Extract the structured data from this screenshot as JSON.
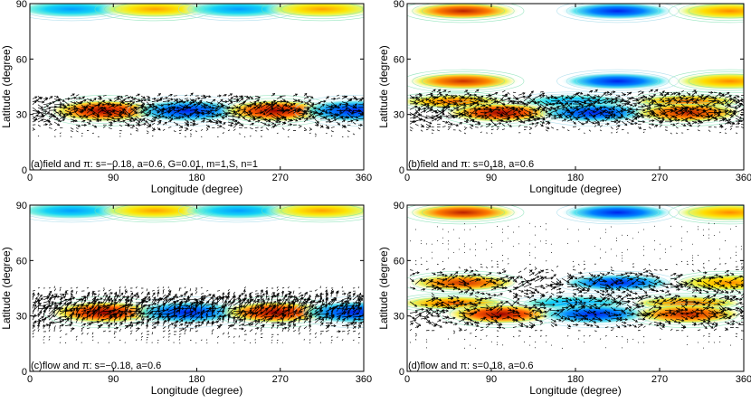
{
  "chart_data": [
    {
      "type": "heatmap",
      "panel": "a",
      "overlay": "quiver",
      "annotation": "(a)field and π: s=−0.18, a=0.6, G=0.01, m=1,S, n=1",
      "xlabel": "Longitude (degree)",
      "ylabel": "Latitude (degree)",
      "xlim": [
        0,
        360
      ],
      "ylim": [
        0,
        90
      ],
      "xticks": [
        "0",
        "90",
        "180",
        "270",
        "360"
      ],
      "yticks": [
        "0",
        "30",
        "60",
        "90"
      ],
      "bands": [
        {
          "lat": 87,
          "width": 3,
          "features": [
            {
              "lon": 45,
              "sign": -1,
              "amp": 0.5
            },
            {
              "lon": 135,
              "sign": 1,
              "amp": 0.55
            },
            {
              "lon": 225,
              "sign": -1,
              "amp": 0.5
            },
            {
              "lon": 315,
              "sign": 1,
              "amp": 0.55
            }
          ]
        },
        {
          "lat": 32,
          "width": 4,
          "features": [
            {
              "lon": 80,
              "sign": 1,
              "amp": 1.0
            },
            {
              "lon": 170,
              "sign": -1,
              "amp": 0.8
            },
            {
              "lon": 265,
              "sign": 1,
              "amp": 1.0
            },
            {
              "lon": 350,
              "sign": -1,
              "amp": 0.8
            }
          ]
        }
      ],
      "arrow_lat_range": [
        18,
        40
      ],
      "arrow_density": "medium"
    },
    {
      "type": "heatmap",
      "panel": "b",
      "overlay": "quiver",
      "annotation": "(b)field and π: s=0.18, a=0.6",
      "xlabel": "Longitude (degree)",
      "ylabel": "Latitude (degree)",
      "xlim": [
        0,
        360
      ],
      "ylim": [
        0,
        90
      ],
      "xticks": [
        "0",
        "90",
        "180",
        "270",
        "360"
      ],
      "yticks": [
        "0",
        "30",
        "60",
        "90"
      ],
      "bands": [
        {
          "lat": 86,
          "width": 3,
          "features": [
            {
              "lon": 60,
              "sign": 1,
              "amp": 0.9
            },
            {
              "lon": 225,
              "sign": -1,
              "amp": 0.8
            },
            {
              "lon": 345,
              "sign": 1,
              "amp": 0.6
            }
          ]
        },
        {
          "lat": 48,
          "width": 3,
          "features": [
            {
              "lon": 60,
              "sign": 1,
              "amp": 0.85
            },
            {
              "lon": 225,
              "sign": -1,
              "amp": 0.8
            },
            {
              "lon": 345,
              "sign": 1,
              "amp": 0.6
            }
          ]
        },
        {
          "lat": 37,
          "width": 2.5,
          "features": [
            {
              "lon": 50,
              "sign": 1,
              "amp": 0.7
            },
            {
              "lon": 180,
              "sign": -1,
              "amp": 0.5
            },
            {
              "lon": 300,
              "sign": 1,
              "amp": 0.7
            }
          ]
        },
        {
          "lat": 31,
          "width": 3.5,
          "features": [
            {
              "lon": 100,
              "sign": 1,
              "amp": 1.0
            },
            {
              "lon": 200,
              "sign": -1,
              "amp": 0.8
            },
            {
              "lon": 300,
              "sign": 1,
              "amp": 0.9
            }
          ]
        }
      ],
      "arrow_lat_range": [
        20,
        42
      ],
      "arrow_density": "medium"
    },
    {
      "type": "heatmap",
      "panel": "c",
      "overlay": "quiver",
      "annotation": "(c)flow and π: s=−0.18, a=0.6",
      "xlabel": "Longitude (degree)",
      "ylabel": "Latitude (degree)",
      "xlim": [
        0,
        360
      ],
      "ylim": [
        0,
        90
      ],
      "xticks": [
        "0",
        "90",
        "180",
        "270",
        "360"
      ],
      "yticks": [
        "0",
        "30",
        "60",
        "90"
      ],
      "bands": [
        {
          "lat": 87,
          "width": 3,
          "features": [
            {
              "lon": 45,
              "sign": -1,
              "amp": 0.5
            },
            {
              "lon": 135,
              "sign": 1,
              "amp": 0.55
            },
            {
              "lon": 225,
              "sign": -1,
              "amp": 0.5
            },
            {
              "lon": 315,
              "sign": 1,
              "amp": 0.55
            }
          ]
        },
        {
          "lat": 32,
          "width": 4,
          "features": [
            {
              "lon": 80,
              "sign": 1,
              "amp": 1.0
            },
            {
              "lon": 170,
              "sign": -1,
              "amp": 0.8
            },
            {
              "lon": 265,
              "sign": 1,
              "amp": 1.0
            },
            {
              "lon": 350,
              "sign": -1,
              "amp": 0.8
            }
          ]
        }
      ],
      "arrow_lat_range": [
        15,
        45
      ],
      "arrow_density": "dense"
    },
    {
      "type": "heatmap",
      "panel": "d",
      "overlay": "quiver",
      "annotation": "(d)flow and π: s=0.18, a=0.6",
      "xlabel": "Longitude (degree)",
      "ylabel": "Latitude (degree)",
      "xlim": [
        0,
        360
      ],
      "ylim": [
        0,
        90
      ],
      "xticks": [
        "0",
        "90",
        "180",
        "270",
        "360"
      ],
      "yticks": [
        "0",
        "30",
        "60",
        "90"
      ],
      "bands": [
        {
          "lat": 86,
          "width": 3,
          "features": [
            {
              "lon": 60,
              "sign": 1,
              "amp": 0.9
            },
            {
              "lon": 225,
              "sign": -1,
              "amp": 0.8
            },
            {
              "lon": 345,
              "sign": 1,
              "amp": 0.6
            }
          ]
        },
        {
          "lat": 48,
          "width": 3,
          "features": [
            {
              "lon": 60,
              "sign": 1,
              "amp": 0.85
            },
            {
              "lon": 225,
              "sign": -1,
              "amp": 0.8
            },
            {
              "lon": 345,
              "sign": 1,
              "amp": 0.6
            }
          ]
        },
        {
          "lat": 37,
          "width": 2.5,
          "features": [
            {
              "lon": 50,
              "sign": 1,
              "amp": 0.7
            },
            {
              "lon": 180,
              "sign": -1,
              "amp": 0.5
            },
            {
              "lon": 300,
              "sign": 1,
              "amp": 0.7
            }
          ]
        },
        {
          "lat": 31,
          "width": 3.5,
          "features": [
            {
              "lon": 100,
              "sign": 1,
              "amp": 1.0
            },
            {
              "lon": 200,
              "sign": -1,
              "amp": 0.8
            },
            {
              "lon": 300,
              "sign": 1,
              "amp": 0.9
            }
          ]
        }
      ],
      "arrow_lat_range": [
        12,
        80
      ],
      "arrow_density": "sparse"
    }
  ]
}
